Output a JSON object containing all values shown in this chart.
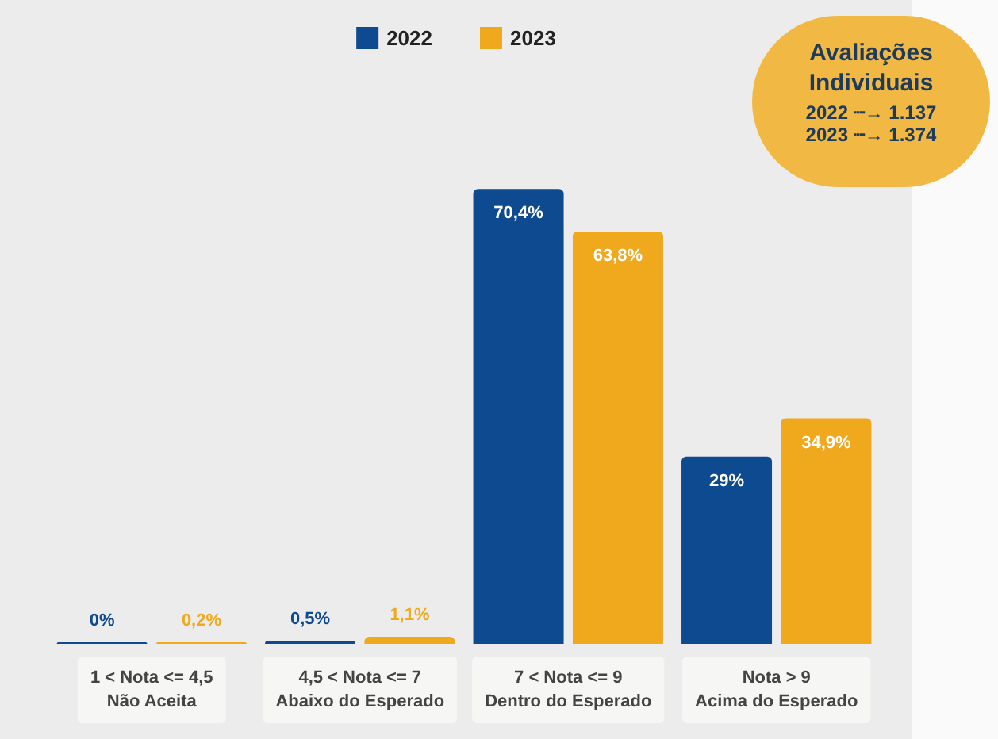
{
  "chart_data": {
    "type": "bar",
    "categories": [
      "1 < Nota <= 4,5\nNão Aceita",
      "4,5 < Nota <= 7\nAbaixo do Esperado",
      "7 < Nota <= 9\nDentro do Esperado",
      "Nota > 9\nAcima do Esperado"
    ],
    "series": [
      {
        "name": "2022",
        "color": "#0d4a8f",
        "values": [
          0,
          0.5,
          70.4,
          29
        ],
        "value_labels": [
          "0%",
          "0,5%",
          "70,4%",
          "29%"
        ]
      },
      {
        "name": "2023",
        "color": "#f0a81c",
        "values": [
          0.2,
          1.1,
          63.8,
          34.9
        ],
        "value_labels": [
          "0,2%",
          "1,1%",
          "63,8%",
          "34,9%"
        ]
      }
    ],
    "legend": "top",
    "annotations": [
      "Avaliações Individuais",
      "2022 ┈→ 1.137",
      "2023 ┈→ 1.374"
    ]
  }
}
